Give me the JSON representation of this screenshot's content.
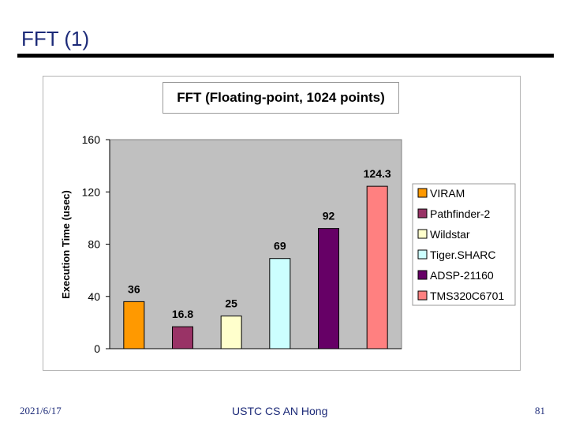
{
  "slide": {
    "title": "FFT (1)"
  },
  "footer": {
    "date": "2021/6/17",
    "center": "USTC CS AN Hong",
    "page": "81"
  },
  "chart_data": {
    "type": "bar",
    "title": "FFT (Floating-point, 1024 points)",
    "xlabel": "",
    "ylabel": "Execution Time (usec)",
    "ylim": [
      0,
      160
    ],
    "yticks": [
      0,
      40,
      80,
      120,
      160
    ],
    "grid": false,
    "legend_position": "right",
    "categories": [
      "VIRAM",
      "Pathfinder-2",
      "Wildstar",
      "Tiger.SHARC",
      "ADSP-21160",
      "TMS320C6701"
    ],
    "values": [
      36,
      16.8,
      25,
      69,
      92,
      124.3
    ],
    "value_labels": [
      "36",
      "16.8",
      "25",
      "69",
      "92",
      "124.3"
    ],
    "colors": [
      "#ff9900",
      "#993366",
      "#ffffcc",
      "#ccffff",
      "#660066",
      "#ff8080"
    ]
  }
}
